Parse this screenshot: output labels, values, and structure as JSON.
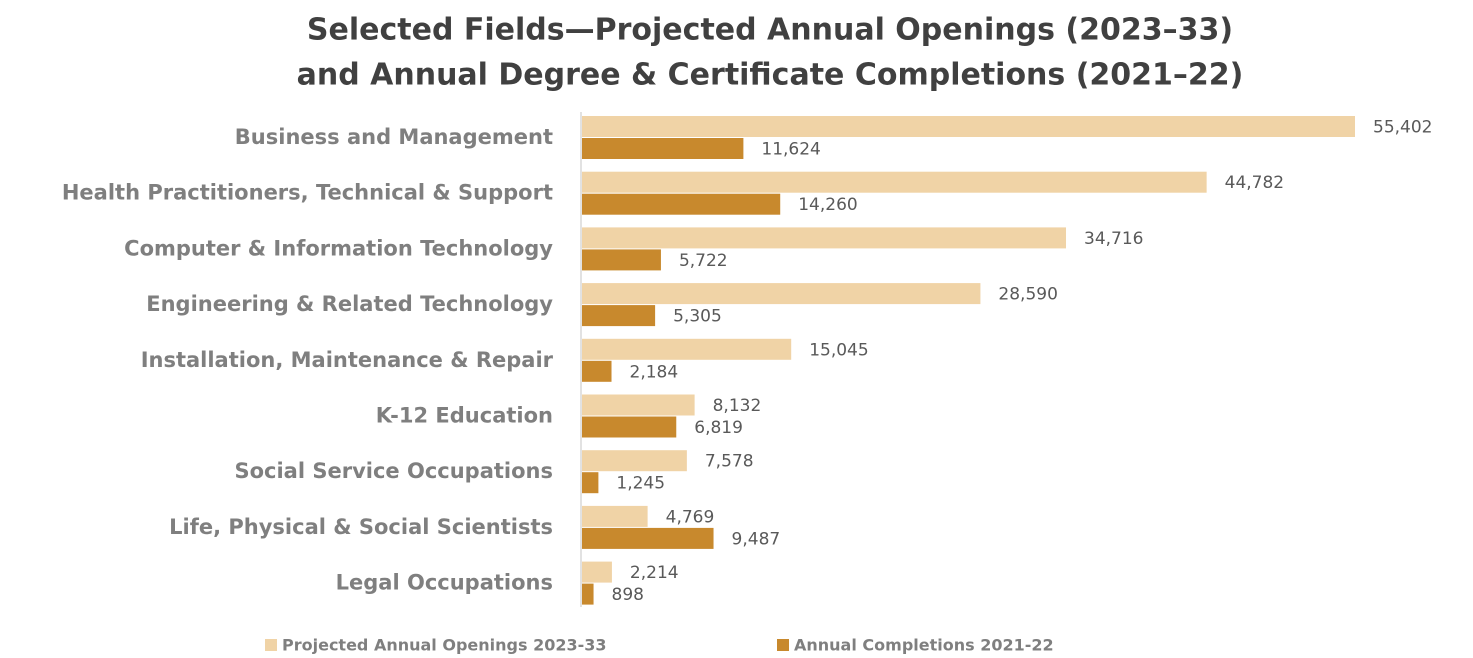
{
  "chart_data": {
    "type": "bar",
    "orientation": "horizontal",
    "title": [
      "Selected Fields—Projected Annual Openings (2023–33)",
      "and Annual Degree & Certificate Completions (2021–22)"
    ],
    "categories": [
      "Business and Management",
      "Health Practitioners, Technical & Support",
      "Computer & Information Technology",
      "Engineering & Related Technology",
      "Installation, Maintenance & Repair",
      "K-12 Education",
      "Social Service Occupations",
      "Life, Physical & Social Scientists",
      "Legal Occupations"
    ],
    "series": [
      {
        "name": "Projected Annual Openings 2023-33",
        "color": "#f0d3a6",
        "values": [
          55402,
          44782,
          34716,
          28590,
          15045,
          8132,
          7578,
          4769,
          2214
        ],
        "value_labels": [
          "55,402",
          "44,782",
          "34,716",
          "28,590",
          "15,045",
          "8,132",
          "7,578",
          "4,769",
          "2,214"
        ]
      },
      {
        "name": "Annual Completions 2021-22",
        "color": "#c8892d",
        "values": [
          11624,
          14260,
          5722,
          5305,
          2184,
          6819,
          1245,
          9487,
          898
        ],
        "value_labels": [
          "11,624",
          "14,260",
          "5,722",
          "5,305",
          "2,184",
          "6,819",
          "1,245",
          "9,487",
          "898"
        ]
      }
    ],
    "legend": "bottom"
  }
}
